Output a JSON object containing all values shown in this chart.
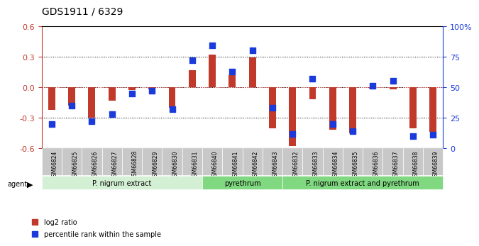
{
  "title": "GDS1911 / 6329",
  "samples": [
    "GSM66824",
    "GSM66825",
    "GSM66826",
    "GSM66827",
    "GSM66828",
    "GSM66829",
    "GSM66830",
    "GSM66831",
    "GSM66840",
    "GSM66841",
    "GSM66842",
    "GSM66843",
    "GSM66832",
    "GSM66833",
    "GSM66834",
    "GSM66835",
    "GSM66836",
    "GSM66837",
    "GSM66838",
    "GSM66839"
  ],
  "log2_ratio": [
    -0.22,
    -0.18,
    -0.3,
    -0.13,
    -0.03,
    -0.02,
    -0.2,
    0.17,
    0.32,
    0.12,
    0.29,
    -0.4,
    -0.58,
    -0.12,
    -0.42,
    -0.45,
    -0.01,
    -0.02,
    -0.4,
    -0.44
  ],
  "pct_rank": [
    20,
    35,
    22,
    28,
    45,
    47,
    32,
    72,
    84,
    63,
    80,
    33,
    12,
    57,
    20,
    14,
    51,
    55,
    10,
    11
  ],
  "ylim_left": [
    -0.6,
    0.6
  ],
  "ylim_right": [
    0,
    100
  ],
  "yticks_left": [
    -0.6,
    -0.3,
    0.0,
    0.3,
    0.6
  ],
  "yticks_right": [
    0,
    25,
    50,
    75,
    100
  ],
  "ytick_labels_right": [
    "0",
    "25",
    "50",
    "75",
    "100%"
  ],
  "groups": [
    {
      "label": "P. nigrum extract",
      "start": 0,
      "end": 8,
      "color": "#c8e6c8"
    },
    {
      "label": "pyrethrum",
      "start": 8,
      "end": 12,
      "color": "#90ee90"
    },
    {
      "label": "P. nigrum extract and pyrethrum",
      "start": 12,
      "end": 20,
      "color": "#90ee90"
    }
  ],
  "bar_color_red": "#c0392b",
  "dot_color_blue": "#1a3adb",
  "bg_color": "#f0f0f0",
  "zero_line_color": "#e05050",
  "grid_color": "#000000",
  "agent_label": "agent",
  "legend_log2": "log2 ratio",
  "legend_pct": "percentile rank within the sample"
}
